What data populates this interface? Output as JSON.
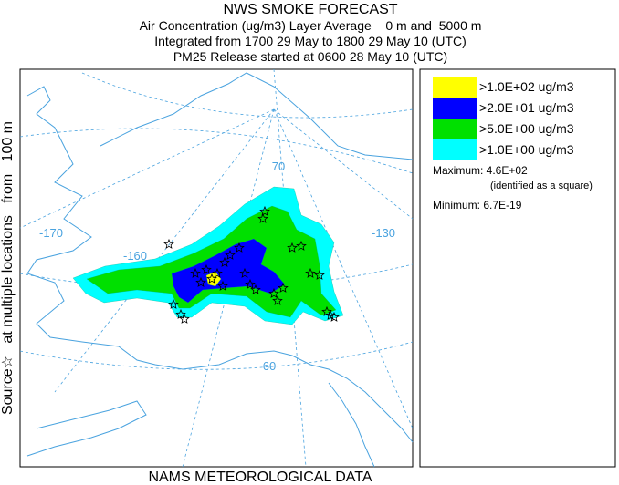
{
  "title": "NWS SMOKE FORECAST",
  "subtitle_lines": [
    "Air Concentration (ug/m3) Layer Average    0 m and  5000 m",
    "Integrated from 1700 29 May to 1800 29 May 10 (UTC)",
    "PM25 Release started at 0600 28 May 10 (UTC)"
  ],
  "side_label": "Source☆   at multiple locations   from   100 m",
  "footer": "NAMS METEOROLOGICAL DATA",
  "map": {
    "longitude_labels": [
      "-170",
      "-160",
      "-130"
    ],
    "latitude_labels": [
      "70",
      "60"
    ]
  },
  "legend": {
    "items": [
      {
        "label": ">1.0E+02 ug/m3",
        "color": "#ffff00"
      },
      {
        "label": ">2.0E+01 ug/m3",
        "color": "#0000ff"
      },
      {
        "label": ">5.0E+00 ug/m3",
        "color": "#00e000"
      },
      {
        "label": ">1.0E+00 ug/m3",
        "color": "#00ffff"
      }
    ]
  },
  "stats": {
    "maximum": "Maximum: 4.6E+02",
    "maximum_note": "(identified as a square)",
    "minimum": "Minimum: 6.7E-19"
  }
}
